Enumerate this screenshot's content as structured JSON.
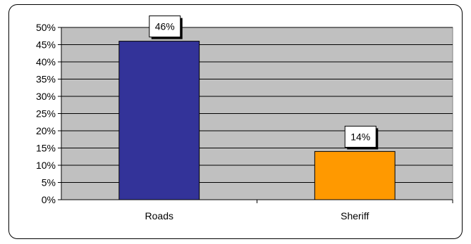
{
  "chart_data": {
    "type": "bar",
    "categories": [
      "Roads",
      "Sheriff"
    ],
    "values": [
      46,
      14
    ],
    "value_labels": [
      "46%",
      "14%"
    ],
    "bar_colors": [
      "#333399",
      "#ff9900"
    ],
    "y_ticks": [
      "0%",
      "5%",
      "10%",
      "15%",
      "20%",
      "25%",
      "30%",
      "35%",
      "40%",
      "45%",
      "50%"
    ],
    "ylim": [
      0,
      50
    ],
    "plot_background": "#c0c0c0",
    "grid": true,
    "legend": "none"
  }
}
